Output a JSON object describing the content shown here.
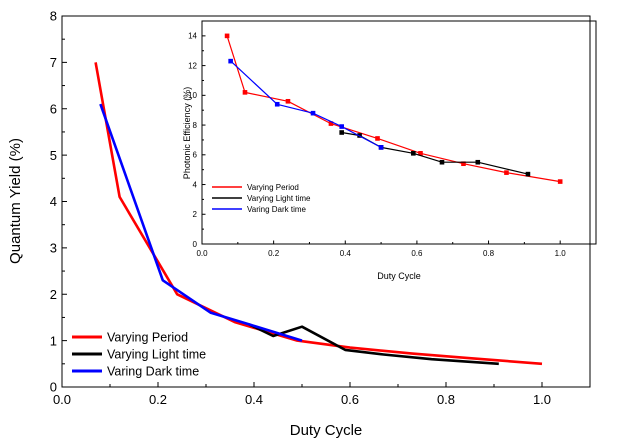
{
  "chart_data": [
    {
      "type": "line",
      "xlabel": "Duty Cycle",
      "ylabel": "Quantum Yield (%)",
      "xlim": [
        0.0,
        1.1
      ],
      "ylim": [
        0,
        8
      ],
      "xticks": [
        "0.0",
        "0.2",
        "0.4",
        "0.6",
        "0.8",
        "1.0"
      ],
      "yticks": [
        "0",
        "1",
        "2",
        "3",
        "4",
        "5",
        "6",
        "7",
        "8"
      ],
      "grid": false,
      "legend": "bottom-left",
      "series": [
        {
          "name": "Varying Period",
          "color": "#ff0000",
          "x": [
            0.07,
            0.12,
            0.24,
            0.36,
            0.49,
            0.6,
            0.73,
            0.85,
            1.0
          ],
          "y": [
            7.0,
            4.1,
            2.0,
            1.4,
            1.0,
            0.85,
            0.72,
            0.62,
            0.5
          ]
        },
        {
          "name": "Varying Light time",
          "color": "#000000",
          "x": [
            0.39,
            0.44,
            0.5,
            0.59,
            0.67,
            0.77,
            0.91
          ],
          "y": [
            1.35,
            1.1,
            1.3,
            0.8,
            0.7,
            0.6,
            0.5
          ]
        },
        {
          "name": "Varing Dark time",
          "color": "#0000ff",
          "x": [
            0.08,
            0.21,
            0.31,
            0.39,
            0.5
          ],
          "y": [
            6.1,
            2.3,
            1.6,
            1.35,
            1.0
          ]
        }
      ]
    },
    {
      "type": "line",
      "xlabel": "Duty Cycle",
      "ylabel": "Photonic Efficiency (%)",
      "xlim": [
        0.0,
        1.1
      ],
      "ylim": [
        0,
        15
      ],
      "xticks": [
        "0.0",
        "0.2",
        "0.4",
        "0.6",
        "0.8",
        "1.0"
      ],
      "yticks": [
        "0",
        "2",
        "4",
        "6",
        "8",
        "10",
        "12",
        "14"
      ],
      "grid": false,
      "legend": "bottom-left",
      "series": [
        {
          "name": "Varying Period",
          "color": "#ff0000",
          "x": [
            0.07,
            0.12,
            0.24,
            0.36,
            0.49,
            0.61,
            0.73,
            0.85,
            1.0
          ],
          "y": [
            14.0,
            10.2,
            9.6,
            8.1,
            7.1,
            6.1,
            5.4,
            4.8,
            4.2
          ]
        },
        {
          "name": "Varying Light time",
          "color": "#000000",
          "x": [
            0.39,
            0.44,
            0.5,
            0.59,
            0.67,
            0.77,
            0.91
          ],
          "y": [
            7.5,
            7.3,
            6.5,
            6.1,
            5.5,
            5.5,
            4.7
          ]
        },
        {
          "name": "Varing Dark time",
          "color": "#0000ff",
          "x": [
            0.08,
            0.21,
            0.31,
            0.39,
            0.5
          ],
          "y": [
            12.3,
            9.4,
            8.8,
            7.9,
            6.5
          ]
        }
      ]
    }
  ]
}
